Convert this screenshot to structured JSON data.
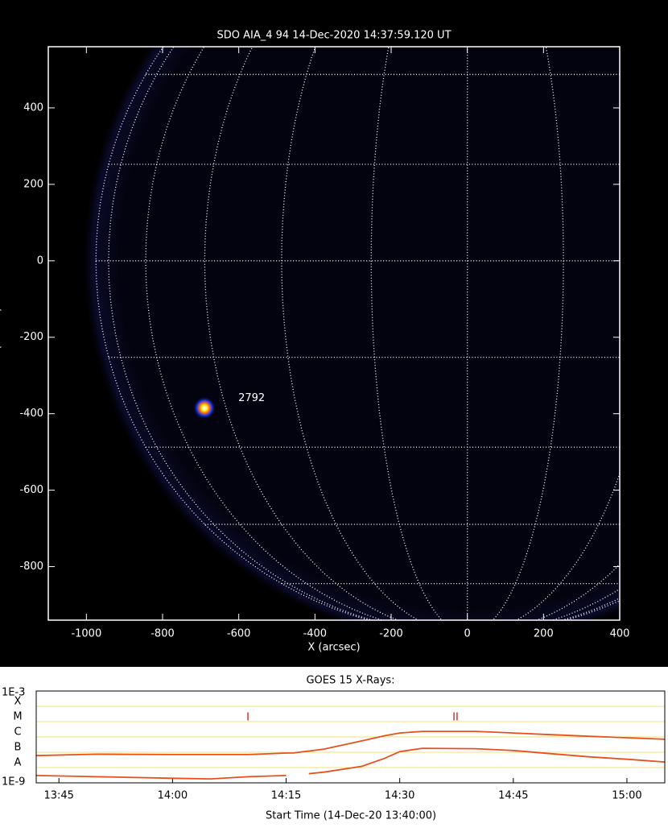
{
  "chart_data": [
    {
      "type": "image",
      "title": "SDO AIA_4 94 14-Dec-2020 14:37:59.120 UT",
      "xlabel": "X (arcsec)",
      "ylabel": "Y (arcsec)",
      "xlim": [
        -1100,
        400
      ],
      "ylim": [
        -940,
        560
      ],
      "xticks": [
        -1000,
        -800,
        -600,
        -400,
        -200,
        0,
        200,
        400
      ],
      "yticks": [
        -800,
        -600,
        -400,
        -200,
        0,
        200,
        400
      ],
      "x": [
        -690
      ],
      "y": [
        -385
      ],
      "annotations": [
        "2792"
      ]
    },
    {
      "type": "line",
      "title": "GOES 15 X-Rays:",
      "xlabel": "Start Time (14-Dec-20 13:40:00)",
      "log": true,
      "grid": true,
      "xlim": [
        "13:42",
        "15:05"
      ],
      "ylim": [
        1e-09,
        0.001
      ],
      "xticks": [
        "13:45",
        "14:00",
        "14:15",
        "14:30",
        "14:45",
        "15:00"
      ],
      "yticks": [
        {
          "value": 0.001,
          "label": "1E-3"
        },
        {
          "value": 0.0001,
          "label": "X"
        },
        {
          "value": 1e-05,
          "label": "M"
        },
        {
          "value": 1e-06,
          "label": "C"
        },
        {
          "value": 1e-07,
          "label": "B"
        },
        {
          "value": 1e-08,
          "label": "A"
        },
        {
          "value": 1e-09,
          "label": "1E-9"
        }
      ],
      "x": [
        "13:42",
        "13:50",
        "14:00",
        "14:05",
        "14:10",
        "14:15",
        "14:16",
        "14:18",
        "14:20",
        "14:25",
        "14:28",
        "14:30",
        "14:33",
        "14:40",
        "14:45",
        "14:50",
        "14:55",
        "15:00",
        "15:05"
      ],
      "series": [
        {
          "color": "#e8501e",
          "values": [
            6e-08,
            7.5e-08,
            7e-08,
            7e-08,
            7e-08,
            8.9e-08,
            9e-08,
            1.2e-07,
            1.6e-07,
            5.5e-07,
            1.2e-06,
            1.8e-06,
            2.3e-06,
            2.3e-06,
            1.8e-06,
            1.4e-06,
            1.1e-06,
            8.9e-07,
            7e-07
          ]
        },
        {
          "color": "#e8501e",
          "values": [
            3e-09,
            2.5e-09,
            2e-09,
            1.8e-09,
            2.5e-09,
            3e-09,
            null,
            4e-09,
            5e-09,
            1.2e-08,
            4e-08,
            1.1e-07,
            1.8e-07,
            1.7e-07,
            1.3e-07,
            8e-08,
            5e-08,
            3.5e-08,
            2.3e-08
          ]
        }
      ],
      "annotations": [
        "I",
        "II"
      ]
    }
  ]
}
